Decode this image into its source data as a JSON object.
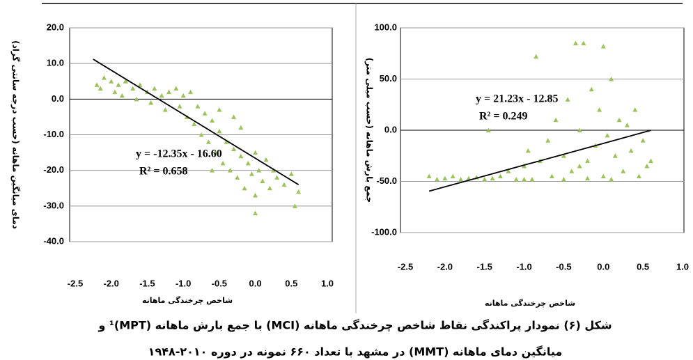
{
  "chart_data": [
    {
      "type": "scatter",
      "y_label": "دمای میانگین ماهانه (حسب درجه سانتی گراد)",
      "x_label": "شاخص چرخندگی ماهانه",
      "color": "#9bc35a",
      "xlim": [
        -2.5,
        1.0
      ],
      "xticks": [
        -2.5,
        {
          "value": -2.0,
          "label": "-2.0"
        },
        -1.5,
        {
          "value": -1.0,
          "label": "-1.0"
        },
        -0.5,
        {
          "value": 0,
          "label": "0.0"
        },
        0.5,
        {
          "value": 1.0,
          "label": "1.0"
        }
      ],
      "ylim": [
        -40,
        20
      ],
      "yticks": [
        {
          "value": 20,
          "label": "20.0"
        },
        {
          "value": 10,
          "label": "10.0"
        },
        {
          "value": 0,
          "label": "0.0"
        },
        {
          "value": -10,
          "label": "-10.0"
        },
        {
          "value": -20,
          "label": "-20.0"
        },
        {
          "value": -30,
          "label": "-30.0"
        },
        {
          "value": -40,
          "label": "-40.0"
        }
      ],
      "grid": true,
      "equation": "y = -12.35x - 16.60",
      "r_squared": "R² = 0.658",
      "x": [
        -2.2,
        -2.15,
        -2.1,
        -2.0,
        -1.95,
        -1.9,
        -1.85,
        -1.8,
        -1.7,
        -1.65,
        -1.6,
        -1.5,
        -1.45,
        -1.4,
        -1.3,
        -1.25,
        -1.2,
        -1.1,
        -1.05,
        -1.0,
        -0.95,
        -0.9,
        -0.85,
        -0.8,
        -0.75,
        -0.7,
        -0.65,
        -0.6,
        -0.55,
        -0.5,
        -0.45,
        -0.4,
        -0.35,
        -0.3,
        -0.25,
        -0.2,
        -0.15,
        -0.1,
        -0.05,
        0.0,
        0.0,
        0.05,
        0.1,
        0.15,
        0.2,
        0.25,
        0.3,
        0.4,
        0.5,
        0.55,
        0.6,
        -0.3,
        -0.5,
        -0.2,
        0.0,
        -0.6
      ],
      "values": [
        4,
        3,
        6,
        5,
        2,
        4,
        1,
        5,
        3,
        0,
        4,
        2,
        -1,
        3,
        1,
        -3,
        2,
        3,
        -2,
        1,
        -5,
        2,
        -7,
        -2,
        -10,
        -4,
        -12,
        -6,
        -15,
        -9,
        -18,
        -12,
        -20,
        -14,
        -22,
        -16,
        -25,
        -18,
        -21,
        -27,
        -15,
        -20,
        -23,
        -17,
        -25,
        -20,
        -22,
        -24,
        -21,
        -30,
        -26,
        -5,
        -3,
        -8,
        -32,
        -20
      ],
      "trendline": {
        "x": [
          -2.25,
          0.6
        ],
        "values": [
          11.19,
          -24.01
        ]
      }
    },
    {
      "type": "scatter",
      "y_label": "جمع بارش ماهانه (حسب میلی متر)",
      "x_label": "شاخص چرخندگی ماهانه",
      "color": "#9bc35a",
      "xlim": [
        -2.5,
        1.0
      ],
      "xticks": [
        -2.5,
        {
          "value": -2.0,
          "label": "-2.0"
        },
        -1.5,
        {
          "value": -1.0,
          "label": "-1.0"
        },
        -0.5,
        {
          "value": 0,
          "label": "0.0"
        },
        0.5,
        {
          "value": 1.0,
          "label": "1.0"
        }
      ],
      "ylim": [
        -100,
        100
      ],
      "yticks": [
        {
          "value": 100,
          "label": "100.0"
        },
        {
          "value": 50,
          "label": "50.0"
        },
        {
          "value": 0,
          "label": "0.0"
        },
        {
          "value": -50,
          "label": "-50.0"
        },
        {
          "value": -100,
          "label": "-100.0"
        }
      ],
      "grid": true,
      "equation": "y = 21.23x - 12.85",
      "r_squared": "R² = 0.249",
      "x": [
        -2.2,
        -2.1,
        -2.0,
        -1.9,
        -1.8,
        -1.7,
        -1.6,
        -1.5,
        -1.45,
        -1.4,
        -1.3,
        -1.2,
        -1.1,
        -1.0,
        -0.95,
        -0.9,
        -0.85,
        -0.8,
        -0.7,
        -0.65,
        -0.6,
        -0.5,
        -0.45,
        -0.4,
        -0.35,
        -0.3,
        -0.25,
        -0.2,
        -0.15,
        -0.1,
        -0.05,
        0.0,
        0.0,
        0.05,
        0.1,
        0.15,
        0.2,
        0.25,
        0.3,
        0.35,
        0.4,
        0.45,
        0.5,
        0.55,
        0.6,
        -0.5,
        -0.2,
        0.1,
        -1.0,
        -0.3
      ],
      "values": [
        -45,
        -48,
        -47,
        -45,
        -48,
        -47,
        -46,
        -48,
        0,
        -47,
        -45,
        -40,
        -48,
        -35,
        -20,
        -48,
        72,
        -30,
        -10,
        -45,
        10,
        -25,
        30,
        -40,
        85,
        0,
        85,
        -30,
        40,
        -15,
        20,
        82,
        -45,
        -5,
        50,
        -25,
        10,
        -40,
        5,
        -20,
        20,
        -45,
        -10,
        -35,
        -30,
        -48,
        -47,
        -48,
        -48,
        -35
      ],
      "trendline": {
        "x": [
          -2.2,
          0.6
        ],
        "values": [
          -59.56,
          -0.11
        ]
      }
    }
  ],
  "caption": [
    "شکل (۶) نمودار پراکندگی نقاط شاخص چرخندگی ماهانه (MCI) با جمع بارش ماهانه (MPT)¹ و",
    "میانگین دمای ماهانه (MMT) در مشهد با تعداد ۶۶۰ نمونه در دوره ۲۰۱۰-۱۹۴۸"
  ]
}
